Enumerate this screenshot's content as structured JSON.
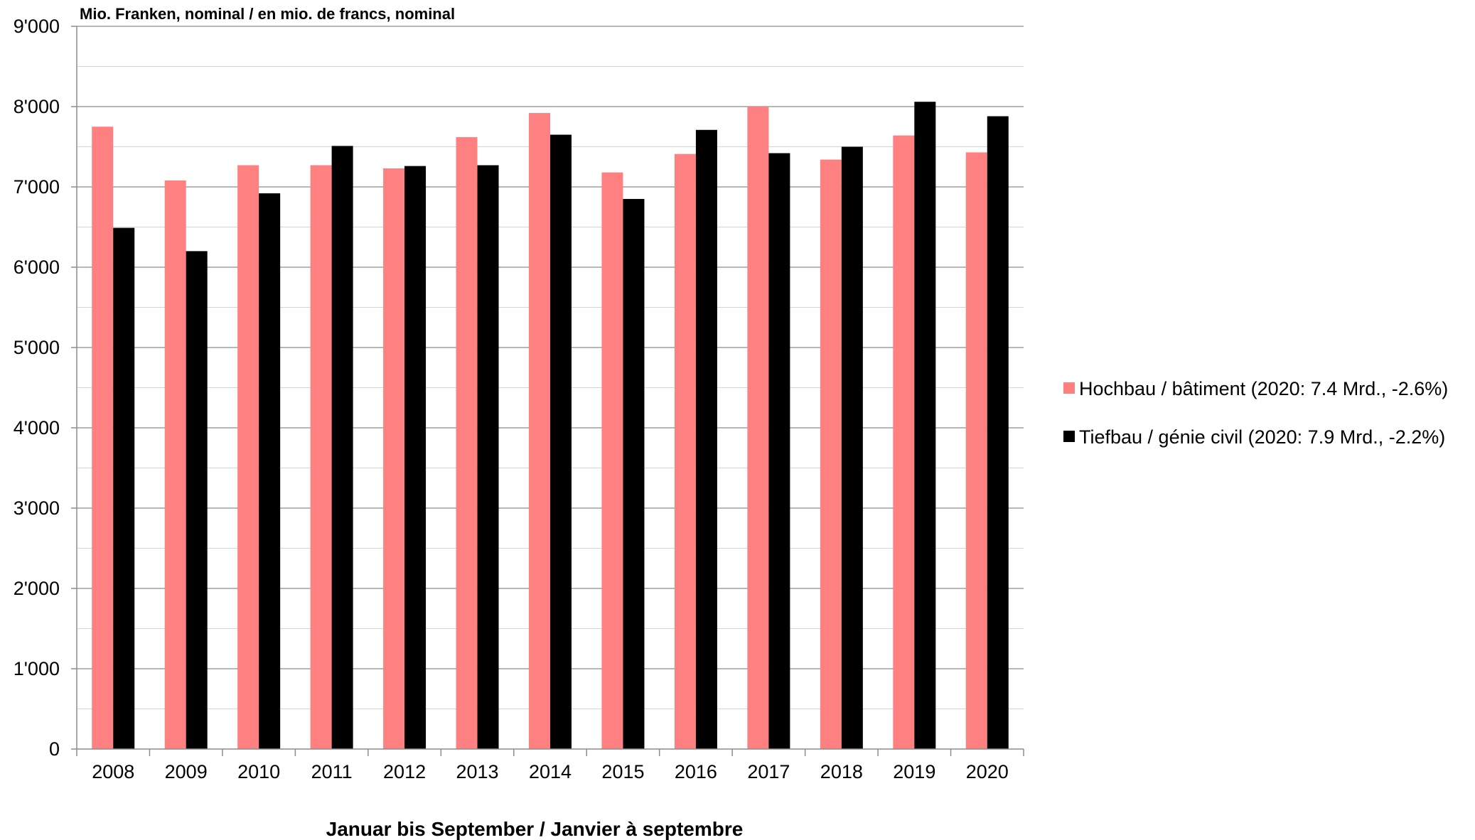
{
  "chart_data": {
    "type": "bar",
    "unit_label": "Mio. Franken, nominal / en mio. de francs, nominal",
    "xlabel": "Januar bis September / Janvier à septembre",
    "ylabel": "",
    "categories": [
      "2008",
      "2009",
      "2010",
      "2011",
      "2012",
      "2013",
      "2014",
      "2015",
      "2016",
      "2017",
      "2018",
      "2019",
      "2020"
    ],
    "series": [
      {
        "name": "Hochbau / bâtiment (2020: 7.4 Mrd., -2.6%)",
        "color": "#ff8080",
        "values": [
          7750,
          7080,
          7270,
          7270,
          7230,
          7620,
          7920,
          7180,
          7410,
          8000,
          7340,
          7640,
          7430
        ]
      },
      {
        "name": "Tiefbau / génie civil (2020: 7.9 Mrd., -2.2%)",
        "color": "#000000",
        "values": [
          6490,
          6200,
          6920,
          7510,
          7260,
          7270,
          7650,
          6850,
          7710,
          7420,
          7500,
          8060,
          7880
        ]
      }
    ],
    "ylim": [
      0,
      9000
    ],
    "yticks": [
      0,
      1000,
      2000,
      3000,
      4000,
      5000,
      6000,
      7000,
      8000,
      9000
    ],
    "ytick_labels": [
      "0",
      "1'000",
      "2'000",
      "3'000",
      "4'000",
      "5'000",
      "6'000",
      "7'000",
      "8'000",
      "9'000"
    ],
    "minor_gridlines": true,
    "grid": true,
    "legend_position": "right"
  }
}
